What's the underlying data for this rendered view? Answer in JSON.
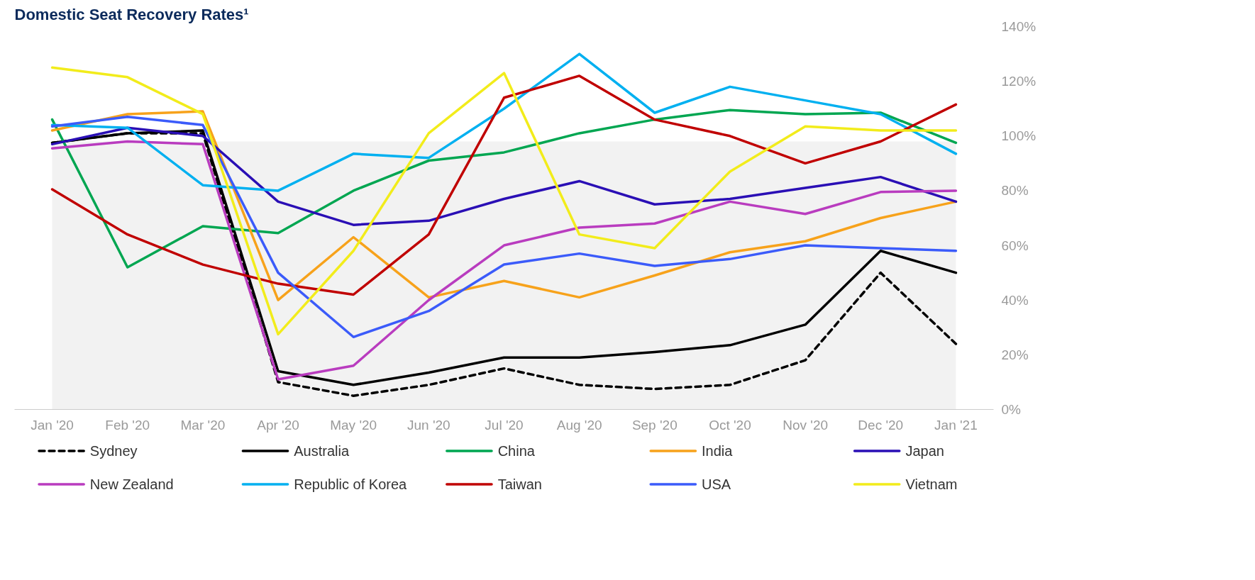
{
  "chart_data": {
    "type": "line",
    "title": "Domestic Seat Recovery Rates¹",
    "categories": [
      "Jan '20",
      "Feb '20",
      "Mar '20",
      "Apr '20",
      "May '20",
      "Jun '20",
      "Jul '20",
      "Aug '20",
      "Sep '20",
      "Oct '20",
      "Nov '20",
      "Dec '20",
      "Jan '21"
    ],
    "ylim": [
      0,
      140
    ],
    "yticks": [
      {
        "value": 0,
        "label": "0%"
      },
      {
        "value": 20,
        "label": "20%"
      },
      {
        "value": 40,
        "label": "40%"
      },
      {
        "value": 60,
        "label": "60%"
      },
      {
        "value": 80,
        "label": "80%"
      },
      {
        "value": 100,
        "label": "100%"
      },
      {
        "value": 120,
        "label": "120%"
      },
      {
        "value": 140,
        "label": "140%"
      }
    ],
    "bands": [
      {
        "axis": "y",
        "from": 0,
        "to": 98,
        "color": "#f2f2f2"
      }
    ],
    "grid": false,
    "legend": "bottom",
    "marker": "none",
    "series": [
      {
        "name": "Sydney",
        "color": "#000000",
        "line_style": "dashed",
        "values": [
          97.5,
          101,
          101,
          10,
          5,
          9,
          15,
          9,
          7.5,
          9,
          18,
          50,
          24
        ]
      },
      {
        "name": "Australia",
        "color": "#000000",
        "values": [
          97.5,
          101,
          102,
          14,
          9,
          13.5,
          19,
          19,
          21,
          23.5,
          31,
          58,
          50
        ]
      },
      {
        "name": "China",
        "color": "#00a651",
        "values": [
          106,
          52,
          67,
          64.5,
          80,
          91,
          94,
          101,
          106,
          109.5,
          108,
          108.5,
          97.5
        ]
      },
      {
        "name": "India",
        "color": "#f7a21b",
        "values": [
          102,
          108,
          109,
          40,
          63,
          41,
          47,
          41,
          49,
          57.5,
          61.5,
          70,
          76
        ]
      },
      {
        "name": "Japan",
        "color": "#2a0fb5",
        "values": [
          97,
          103,
          100,
          76,
          67.5,
          69,
          77,
          83.5,
          75,
          77,
          81,
          85,
          76
        ]
      },
      {
        "name": "New Zealand",
        "color": "#b93cbf",
        "values": [
          95.5,
          98,
          97,
          11,
          16,
          40,
          60,
          66.5,
          68,
          76,
          71.5,
          79.5,
          80
        ]
      },
      {
        "name": "Republic of Korea",
        "color": "#00b0f0",
        "values": [
          104,
          103,
          82,
          80,
          93.5,
          92,
          110,
          130,
          108.5,
          118,
          113,
          108,
          93.5
        ]
      },
      {
        "name": "Taiwan",
        "color": "#c00000",
        "values": [
          80.5,
          64,
          53,
          46,
          42,
          64,
          114,
          122,
          106,
          100,
          90,
          98,
          111.5
        ]
      },
      {
        "name": "USA",
        "color": "#3b5bfa",
        "values": [
          103.5,
          107,
          104,
          50,
          26.5,
          36,
          53,
          57,
          52.5,
          55,
          60,
          59,
          58
        ]
      },
      {
        "name": "Vietnam",
        "color": "#f2ec1b",
        "values": [
          125,
          121.5,
          108,
          27.5,
          58,
          101,
          123,
          64,
          59,
          87,
          103.5,
          102,
          102
        ]
      }
    ]
  }
}
